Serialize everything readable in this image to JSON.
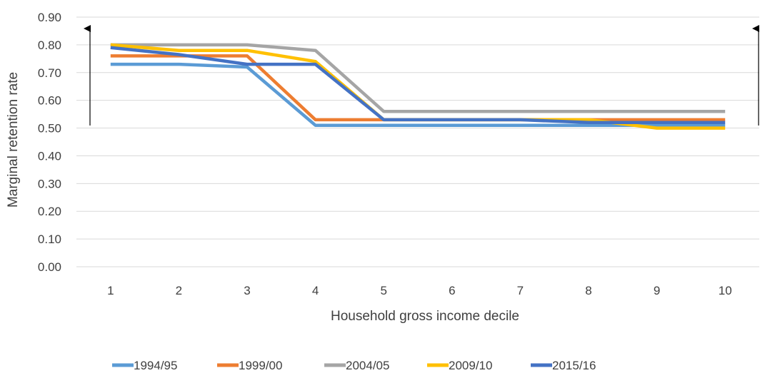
{
  "chart_data": {
    "type": "line",
    "title": "",
    "xlabel": "Household gross income decile",
    "ylabel": "Marginal retention rate",
    "categories": [
      "1",
      "2",
      "3",
      "4",
      "5",
      "6",
      "7",
      "8",
      "9",
      "10"
    ],
    "ylim": [
      0,
      0.9
    ],
    "yticks": [
      "0.00",
      "0.10",
      "0.20",
      "0.30",
      "0.40",
      "0.50",
      "0.60",
      "0.70",
      "0.80",
      "0.90"
    ],
    "grid": true,
    "legend_position": "bottom",
    "annotations": [
      "up-arrow at decile 1 side",
      "up-arrow at decile 10 side"
    ],
    "series": [
      {
        "name": "1994/95",
        "color": "#5b9bd5",
        "values": [
          0.73,
          0.73,
          0.72,
          0.51,
          0.51,
          0.51,
          0.51,
          0.51,
          0.51,
          0.51
        ]
      },
      {
        "name": "1999/00",
        "color": "#ed7d31",
        "values": [
          0.76,
          0.76,
          0.76,
          0.53,
          0.53,
          0.53,
          0.53,
          0.53,
          0.53,
          0.53
        ]
      },
      {
        "name": "2004/05",
        "color": "#a5a5a5",
        "values": [
          0.8,
          0.8,
          0.8,
          0.78,
          0.56,
          0.56,
          0.56,
          0.56,
          0.56,
          0.56
        ]
      },
      {
        "name": "2009/10",
        "color": "#ffc000",
        "values": [
          0.8,
          0.78,
          0.78,
          0.74,
          0.53,
          0.53,
          0.53,
          0.53,
          0.5,
          0.5
        ]
      },
      {
        "name": "2015/16",
        "color": "#4472c4",
        "values": [
          0.79,
          0.765,
          0.73,
          0.73,
          0.53,
          0.53,
          0.53,
          0.52,
          0.52,
          0.52
        ]
      }
    ]
  }
}
